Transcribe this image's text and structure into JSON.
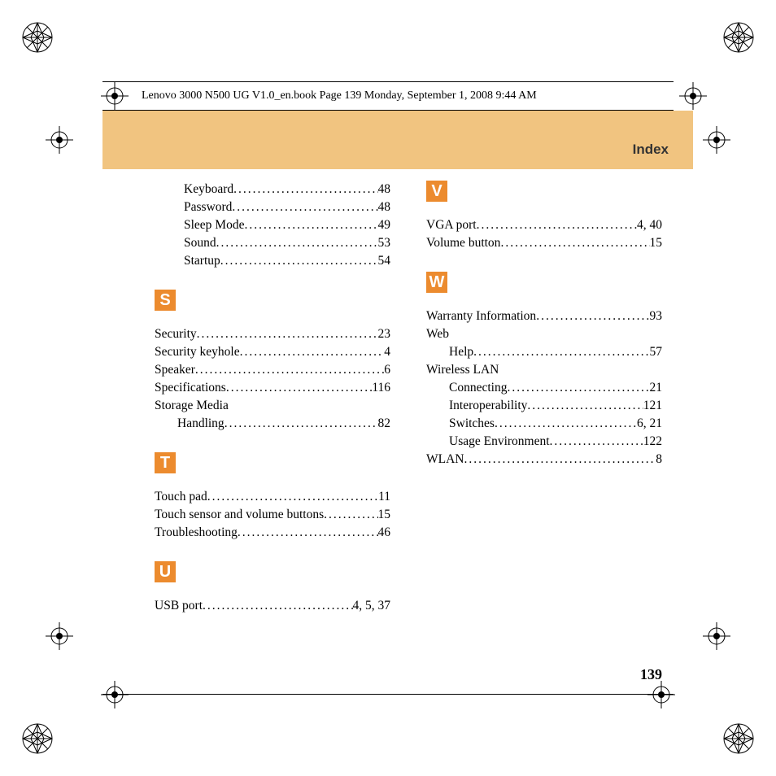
{
  "header": "Lenovo 3000 N500 UG V1.0_en.book  Page 139  Monday, September 1, 2008  9:44 AM",
  "banner_title": "Index",
  "page_number": "139",
  "colors": {
    "banner_bg": "#f1c480",
    "letter_bg": "#ec8b2e",
    "letter_fg": "#ffffff"
  },
  "left_col": {
    "top_entries": [
      {
        "term": "Keyboard",
        "page": "48"
      },
      {
        "term": "Password",
        "page": "48"
      },
      {
        "term": "Sleep Mode",
        "page": "49"
      },
      {
        "term": "Sound",
        "page": "53"
      },
      {
        "term": "Startup",
        "page": "54"
      }
    ],
    "sections": [
      {
        "letter": "S",
        "entries": [
          {
            "term": "Security",
            "page": "23"
          },
          {
            "term": "Security keyhole",
            "page": "4"
          },
          {
            "term": "Speaker",
            "page": "6"
          },
          {
            "term": "Specifications",
            "page": "116"
          },
          {
            "term": "Storage Media",
            "page": "",
            "noval": true
          },
          {
            "term": "Handling",
            "page": "82",
            "indent": true
          }
        ]
      },
      {
        "letter": "T",
        "entries": [
          {
            "term": "Touch pad",
            "page": "11"
          },
          {
            "term": "Touch sensor and volume buttons",
            "page": "15"
          },
          {
            "term": "Troubleshooting",
            "page": "46"
          }
        ]
      },
      {
        "letter": "U",
        "entries": [
          {
            "term": "USB port",
            "page": "4, 5, 37"
          }
        ]
      }
    ]
  },
  "right_col": {
    "sections": [
      {
        "letter": "V",
        "entries": [
          {
            "term": "VGA port",
            "page": "4, 40"
          },
          {
            "term": "Volume button",
            "page": "15"
          }
        ]
      },
      {
        "letter": "W",
        "entries": [
          {
            "term": "Warranty Information",
            "page": "93"
          },
          {
            "term": "Web",
            "page": "",
            "noval": true
          },
          {
            "term": "Help",
            "page": "57",
            "indent": true
          },
          {
            "term": "Wireless LAN",
            "page": "",
            "noval": true
          },
          {
            "term": "Connecting",
            "page": "21",
            "indent": true
          },
          {
            "term": "Interoperability",
            "page": "121",
            "indent": true
          },
          {
            "term": "Switches",
            "page": "6, 21",
            "indent": true
          },
          {
            "term": "Usage Environment",
            "page": "122",
            "indent": true
          },
          {
            "term": "WLAN",
            "page": "8"
          }
        ]
      }
    ]
  }
}
